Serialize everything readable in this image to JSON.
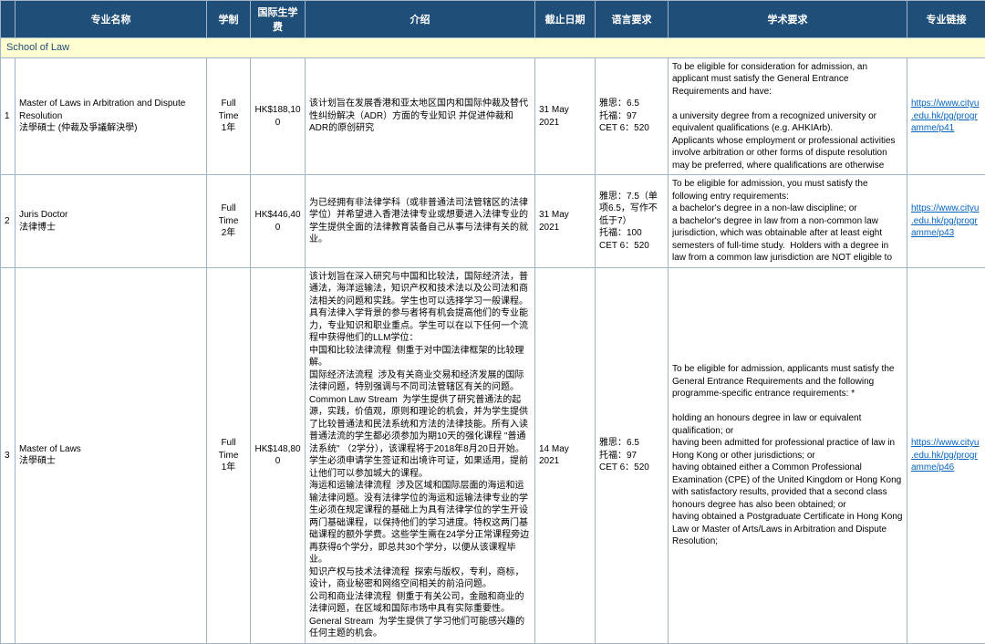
{
  "headers": [
    "",
    "专业名称",
    "学制",
    "国际生学费",
    "介绍",
    "截止日期",
    "语言要求",
    "学术要求",
    "专业链接"
  ],
  "school_row": "School of Law",
  "rows": [
    {
      "idx": "1",
      "name": "Master of Laws in Arbitration and Dispute Resolution\n法學碩士 (仲裁及爭議解決學)",
      "mode": "Full Time\n1年",
      "fee": "HK$188,100",
      "intro": "该计划旨在发展香港和亚太地区国内和国际仲裁及替代性纠纷解决（ADR）方面的专业知识 并促进仲裁和ADR的原创研究",
      "deadline": "31 May 2021",
      "lang": "雅思：6.5\n托福：97\nCET 6：520",
      "acad": "To be eligible for consideration for admission, an applicant must satisfy the General Entrance Requirements and have:\n\na university degree from a recognized university or equivalent qualifications (e.g. AHKIArb).\nApplicants whose employment or professional activities involve arbitration or other forms of dispute resolution may be preferred, where qualifications are otherwise",
      "link": "https://www.cityu.edu.hk/pg/programme/p41"
    },
    {
      "idx": "2",
      "name": "Juris Doctor\n法律博士",
      "mode": "Full Time\n2年",
      "fee": "HK$446,400",
      "intro": "为已经拥有非法律学科（或非普通法司法管辖区的法律学位）并希望进入香港法律专业或想要进入法律专业的学生提供全面的法律教育装备自己从事与法律有关的就业。",
      "deadline": "31 May 2021",
      "lang": "雅思：7.5（单项6.5，写作不低于7）\n托福：100\nCET 6：520",
      "acad": "To be eligible for admission, you must satisfy the following entry requirements:\na bachelor's degree in a non-law discipline; or\na bachelor's degree in law from a non-common law jurisdiction, which was obtainable after at least eight semesters of full-time study.  Holders with a degree in law from a common law jurisdiction are NOT eligible to",
      "link": "https://www.cityu.edu.hk/pg/programme/p43"
    },
    {
      "idx": "3",
      "name": "Master of Laws\n法學碩士",
      "mode": "Full Time\n1年",
      "fee": "HK$148,800",
      "intro": "该计划旨在深入研究与中国和比较法，国际经济法，普通法，海洋运输法，知识产权和技术法以及公司法和商法相关的问题和实践。学生也可以选择学习一般课程。具有法律入学背景的参与者将有机会提高他们的专业能力，专业知识和职业重点。学生可以在以下任何一个流程中获得他们的LLM学位：\n中国和比较法律流程  侧重于对中国法律框架的比较理解。\n国际经济法流程  涉及有关商业交易和经济发展的国际法律问题，特别强调与不同司法管辖区有关的问题。\nCommon Law Stream  为学生提供了研究普通法的起源，实践，价值观，原则和理论的机会，并为学生提供了比较普通法和民法系统和方法的法律技能。所有入读普通法流的学生都必须参加为期10天的强化课程 \"普通法系统\" （2学分），该课程将于2018年8月20日开始。学生必须申请学生签证和出境许可证，如果适用，提前让他们可以参加城大的课程。\n海运和运输法律流程  涉及区域和国际层面的海运和运输法律问题。没有法律学位的海运和运输法律专业的学生必须在规定课程的基础上为具有法律学位的学生开设两门基础课程，以保持他们的学习进度。特权这两门基础课程的额外学费。这些学生需在24学分正常课程旁边再获得6个学分，即总共30个学分，以便从该课程毕业。\n知识产权与技术法律流程  探索与版权，专利，商标，设计，商业秘密和网络空间相关的前沿问题。\n公司和商业法律流程  侧重于有关公司，金融和商业的法律问题，在区域和国际市场中具有实际重要性。\nGeneral Stream  为学生提供了学习他们可能感兴趣的任何主题的机会。",
      "deadline": "14 May 2021",
      "lang": "雅思：6.5\n托福：97\nCET 6：520",
      "acad": "To be eligible for admission, applicants must satisfy the General Entrance Requirements and the following programme-specific entrance requirements: *\n\nholding an honours degree in law or equivalent qualification; or\nhaving been admitted for professional practice of law in Hong Kong or other jurisdictions; or\nhaving obtained either a Common Professional Examination (CPE) of the United Kingdom or Hong Kong with satisfactory results, provided that a second class honours degree has also been obtained; or\nhaving obtained a Postgraduate Certificate in Hong Kong Law or Master of Arts/Laws in Arbitration and Dispute Resolution;",
      "link": "https://www.cityu.edu.hk/pg/programme/p46"
    }
  ]
}
